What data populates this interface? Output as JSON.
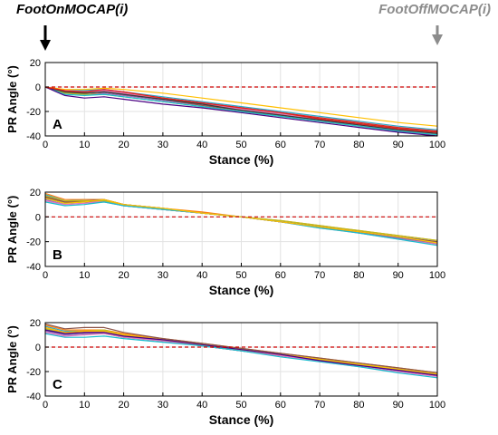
{
  "header": {
    "foot_on_label": "FootOnMOCAP(i)",
    "foot_off_label": "FootOffMOCAP(i)"
  },
  "colors": {
    "zero_line": "#cc0000",
    "foot_on_arrow": "#000000",
    "foot_off_arrow": "#8c8c8c",
    "series_palette": [
      "#2ca7c6",
      "#1f77b4",
      "#d62728",
      "#2ca02c",
      "#ff7f0e",
      "#9467bd",
      "#8c564b",
      "#e377c2",
      "#bcbd22",
      "#17becf",
      "#ffbf00",
      "#4b0082",
      "#3a3a3a",
      "#e41a1c"
    ]
  },
  "chart_data": [
    {
      "id": "A",
      "type": "line",
      "panel_label": "A",
      "xlabel": "Stance (%)",
      "ylabel": "PR Angle (°)",
      "xlim": [
        0,
        100
      ],
      "ylim": [
        -40,
        20
      ],
      "xticks": [
        0,
        10,
        20,
        30,
        40,
        50,
        60,
        70,
        80,
        90,
        100
      ],
      "yticks": [
        -40,
        -20,
        0,
        20
      ],
      "grid": true,
      "reference_line": 0,
      "x": [
        0,
        5,
        10,
        15,
        20,
        30,
        40,
        50,
        60,
        70,
        80,
        90,
        100
      ],
      "series": [
        {
          "values": [
            0,
            -3,
            -3,
            -2,
            -4,
            -8,
            -12,
            -16,
            -20,
            -24,
            -28,
            -32,
            -35
          ]
        },
        {
          "values": [
            0,
            -4,
            -5,
            -4,
            -6,
            -10,
            -14,
            -18,
            -22,
            -26,
            -30,
            -34,
            -37
          ]
        },
        {
          "values": [
            0,
            -4,
            -4,
            -3,
            -5,
            -9,
            -13,
            -17,
            -21,
            -25,
            -29,
            -33,
            -36
          ]
        },
        {
          "values": [
            0,
            -5,
            -5,
            -4,
            -6,
            -10,
            -14,
            -18,
            -22,
            -26,
            -30,
            -34,
            -37
          ]
        },
        {
          "values": [
            0,
            -4,
            -5,
            -3,
            -5,
            -9,
            -14,
            -18,
            -22,
            -26,
            -30,
            -34,
            -38
          ]
        },
        {
          "values": [
            0,
            -5,
            -6,
            -5,
            -7,
            -11,
            -15,
            -19,
            -23,
            -27,
            -31,
            -35,
            -38
          ]
        },
        {
          "values": [
            0,
            -5,
            -5,
            -4,
            -6,
            -10,
            -15,
            -19,
            -23,
            -27,
            -31,
            -35,
            -38
          ]
        },
        {
          "values": [
            0,
            -3,
            -4,
            -3,
            -5,
            -10,
            -14,
            -18,
            -22,
            -27,
            -31,
            -35,
            -39
          ]
        },
        {
          "values": [
            0,
            -5,
            -6,
            -6,
            -8,
            -12,
            -16,
            -20,
            -24,
            -28,
            -32,
            -36,
            -39
          ]
        },
        {
          "values": [
            0,
            -6,
            -7,
            -6,
            -8,
            -12,
            -16,
            -20,
            -24,
            -28,
            -32,
            -36,
            -39
          ]
        },
        {
          "values": [
            0,
            -2,
            -2,
            -1,
            -2,
            -5,
            -9,
            -13,
            -17,
            -21,
            -25,
            -29,
            -32
          ]
        },
        {
          "values": [
            0,
            -7,
            -9,
            -8,
            -10,
            -14,
            -17,
            -21,
            -25,
            -29,
            -33,
            -37,
            -40
          ]
        },
        {
          "values": [
            0,
            -4,
            -5,
            -4,
            -6,
            -10,
            -14,
            -19,
            -23,
            -27,
            -31,
            -35,
            -38
          ]
        },
        {
          "values": [
            0,
            -3,
            -4,
            -2,
            -4,
            -9,
            -13,
            -17,
            -21,
            -26,
            -30,
            -34,
            -37
          ]
        }
      ]
    },
    {
      "id": "B",
      "type": "line",
      "panel_label": "B",
      "xlabel": "Stance (%)",
      "ylabel": "PR Angle (°)",
      "xlim": [
        0,
        100
      ],
      "ylim": [
        -40,
        20
      ],
      "xticks": [
        0,
        10,
        20,
        30,
        40,
        50,
        60,
        70,
        80,
        90,
        100
      ],
      "yticks": [
        -40,
        -20,
        0,
        20
      ],
      "grid": true,
      "reference_line": 0,
      "x": [
        0,
        5,
        10,
        15,
        20,
        30,
        40,
        50,
        60,
        70,
        80,
        90,
        100
      ],
      "series": [
        {
          "values": [
            18,
            13,
            14,
            14,
            10,
            7,
            3,
            0,
            -4,
            -8,
            -12,
            -16,
            -20
          ]
        },
        {
          "values": [
            16,
            12,
            13,
            13,
            10,
            7,
            3,
            0,
            -4,
            -8,
            -12,
            -16,
            -21
          ]
        },
        {
          "values": [
            17,
            12,
            12,
            13,
            10,
            6,
            3,
            0,
            -4,
            -8,
            -12,
            -17,
            -21
          ]
        },
        {
          "values": [
            15,
            11,
            12,
            13,
            9,
            6,
            3,
            0,
            -4,
            -8,
            -13,
            -17,
            -22
          ]
        },
        {
          "values": [
            19,
            14,
            14,
            14,
            10,
            7,
            4,
            0,
            -3,
            -7,
            -11,
            -15,
            -19
          ]
        },
        {
          "values": [
            14,
            10,
            11,
            12,
            9,
            6,
            3,
            0,
            -4,
            -8,
            -12,
            -17,
            -21
          ]
        },
        {
          "values": [
            16,
            12,
            13,
            14,
            10,
            7,
            3,
            0,
            -4,
            -8,
            -12,
            -16,
            -20
          ]
        },
        {
          "values": [
            13,
            10,
            11,
            13,
            9,
            6,
            3,
            0,
            -4,
            -9,
            -13,
            -18,
            -22
          ]
        },
        {
          "values": [
            17,
            13,
            13,
            13,
            10,
            7,
            3,
            0,
            -3,
            -7,
            -11,
            -15,
            -19
          ]
        },
        {
          "values": [
            12,
            9,
            10,
            12,
            9,
            6,
            3,
            0,
            -4,
            -9,
            -13,
            -18,
            -23
          ]
        },
        {
          "values": [
            15,
            11,
            12,
            14,
            10,
            7,
            3,
            0,
            -4,
            -8,
            -12,
            -16,
            -21
          ]
        }
      ]
    },
    {
      "id": "C",
      "type": "line",
      "panel_label": "C",
      "xlabel": "Stance (%)",
      "ylabel": "PR Angle (°)",
      "xlim": [
        0,
        100
      ],
      "ylim": [
        -40,
        20
      ],
      "xticks": [
        0,
        10,
        20,
        30,
        40,
        50,
        60,
        70,
        80,
        90,
        100
      ],
      "yticks": [
        -40,
        -20,
        0,
        20
      ],
      "grid": true,
      "reference_line": 0,
      "x": [
        0,
        5,
        10,
        15,
        20,
        30,
        40,
        50,
        60,
        70,
        80,
        90,
        100
      ],
      "series": [
        {
          "values": [
            17,
            13,
            13,
            13,
            10,
            6,
            2,
            -2,
            -6,
            -10,
            -14,
            -18,
            -22
          ]
        },
        {
          "values": [
            15,
            11,
            12,
            12,
            9,
            6,
            2,
            -2,
            -6,
            -10,
            -14,
            -18,
            -22
          ]
        },
        {
          "values": [
            16,
            12,
            12,
            12,
            9,
            5,
            1,
            -3,
            -7,
            -11,
            -15,
            -19,
            -23
          ]
        },
        {
          "values": [
            14,
            10,
            11,
            11,
            8,
            5,
            1,
            -3,
            -7,
            -11,
            -15,
            -19,
            -23
          ]
        },
        {
          "values": [
            18,
            14,
            14,
            14,
            11,
            7,
            3,
            -1,
            -5,
            -9,
            -13,
            -17,
            -21
          ]
        },
        {
          "values": [
            13,
            10,
            11,
            12,
            9,
            5,
            1,
            -3,
            -7,
            -11,
            -15,
            -19,
            -23
          ]
        },
        {
          "values": [
            19,
            15,
            16,
            16,
            12,
            7,
            3,
            -1,
            -5,
            -9,
            -13,
            -17,
            -21
          ]
        },
        {
          "values": [
            12,
            9,
            10,
            11,
            8,
            5,
            1,
            -3,
            -7,
            -12,
            -16,
            -20,
            -24
          ]
        },
        {
          "values": [
            15,
            12,
            13,
            14,
            10,
            6,
            2,
            -2,
            -6,
            -10,
            -14,
            -18,
            -22
          ]
        },
        {
          "values": [
            11,
            8,
            8,
            9,
            7,
            4,
            1,
            -3,
            -8,
            -12,
            -16,
            -21,
            -25
          ]
        },
        {
          "values": [
            16,
            12,
            13,
            13,
            10,
            6,
            2,
            -2,
            -6,
            -10,
            -14,
            -18,
            -22
          ]
        },
        {
          "values": [
            14,
            11,
            12,
            12,
            9,
            6,
            2,
            -2,
            -6,
            -11,
            -15,
            -19,
            -23
          ]
        }
      ]
    }
  ]
}
